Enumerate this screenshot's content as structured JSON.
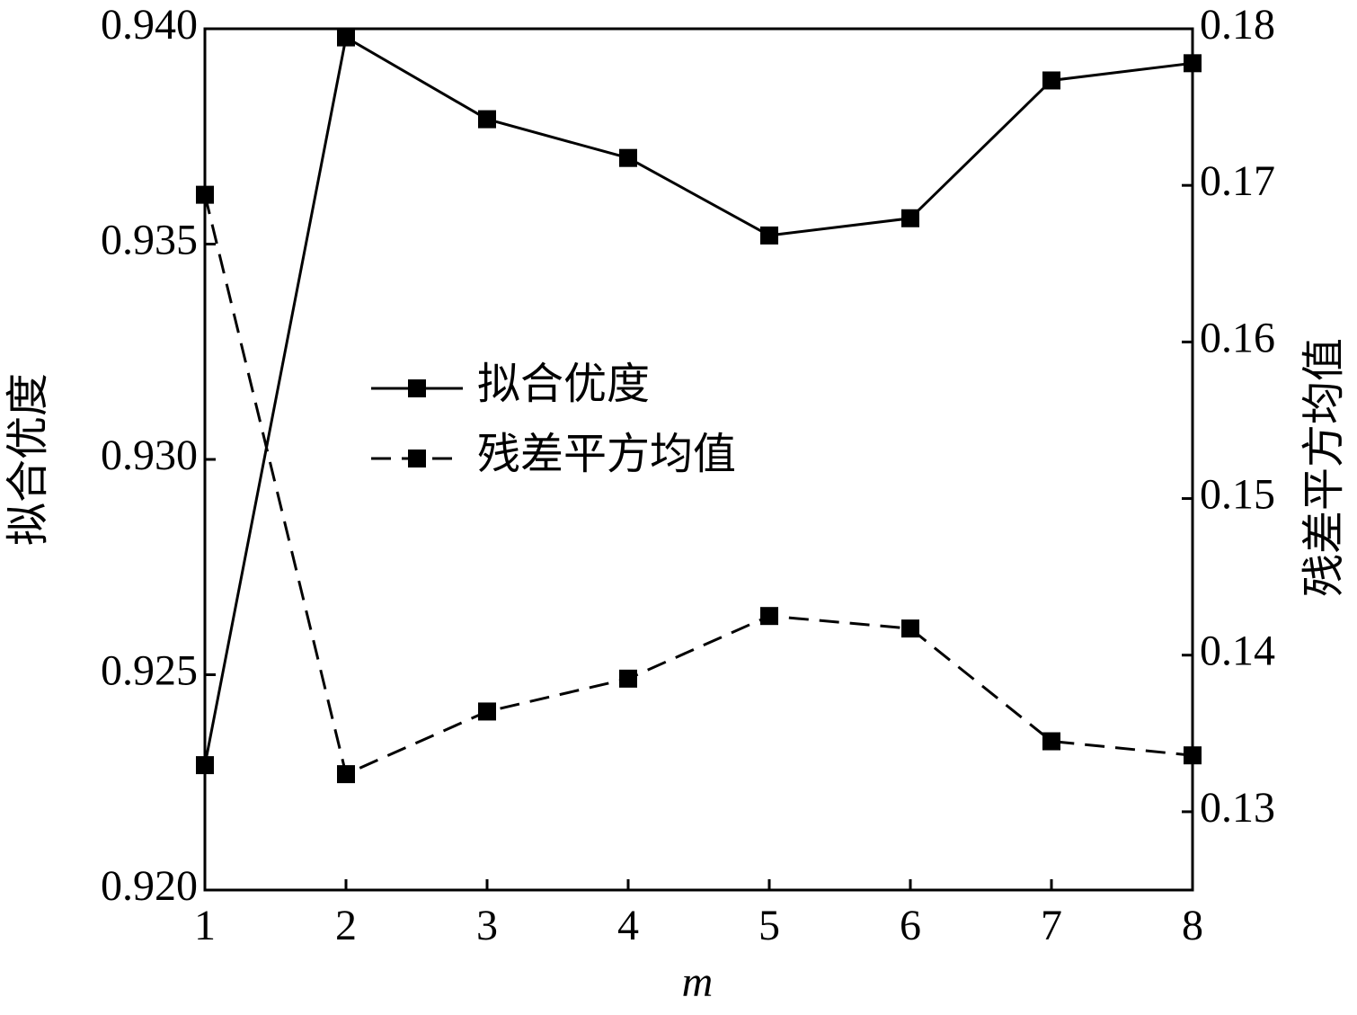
{
  "chart_data": {
    "type": "line",
    "x_label": "m",
    "y_label": "拟合优度",
    "y2_label": "残差平方均值",
    "x": [
      1,
      2,
      3,
      4,
      5,
      6,
      7,
      8
    ],
    "xlim": [
      1,
      8
    ],
    "xticks": [
      1,
      2,
      3,
      4,
      5,
      6,
      7,
      8
    ],
    "ylim": [
      0.92,
      0.94
    ],
    "yticks": [
      {
        "value": 0.92,
        "label": "0.920"
      },
      0.925,
      {
        "value": 0.93,
        "label": "0.930"
      },
      0.935,
      {
        "value": 0.94,
        "label": "0.940"
      }
    ],
    "y2lim": [
      0.125,
      0.18
    ],
    "y2ticks": [
      0.13,
      0.14,
      0.15,
      0.16,
      0.17,
      0.18
    ],
    "legend": "center",
    "series": [
      {
        "name": "拟合优度",
        "color": "#000000",
        "linestyle": "solid",
        "marker": "square",
        "values": [
          0.9229,
          0.9398,
          0.9379,
          0.937,
          0.9352,
          0.9356,
          0.9388,
          0.9392
        ]
      },
      {
        "name": "残差平方均值",
        "color": "#000000",
        "linestyle": "dashed",
        "marker": "square",
        "axis": "y2",
        "values": [
          0.1694,
          0.1324,
          0.1364,
          0.1385,
          0.1425,
          0.1417,
          0.1345,
          0.1336
        ]
      }
    ]
  }
}
